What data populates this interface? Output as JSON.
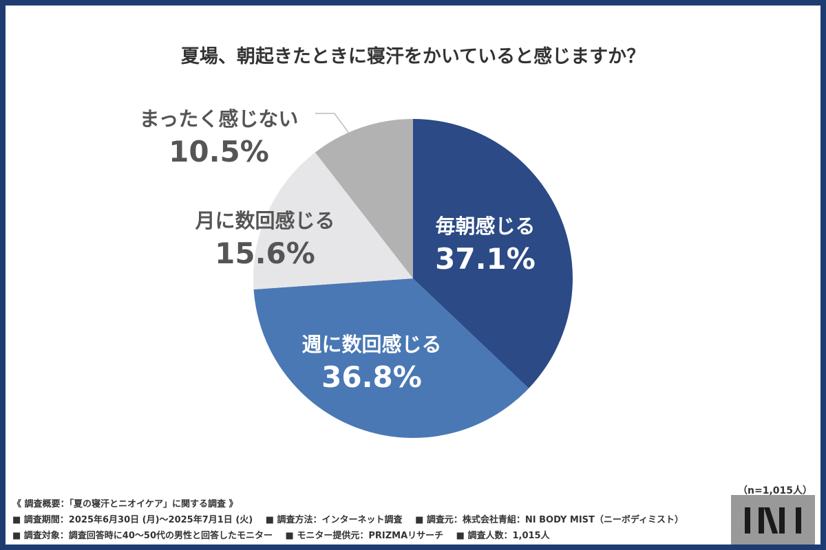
{
  "title": "夏場、朝起きたときに寝汗をかいていると感じますか？",
  "chart_data": {
    "type": "pie",
    "title": "夏場、朝起きたときに寝汗をかいていると感じますか？",
    "slices": [
      {
        "label": "毎朝感じる",
        "value": 37.1,
        "display": "37.1%",
        "color": "#2b4a86"
      },
      {
        "label": "週に数回感じる",
        "value": 36.8,
        "display": "36.8%",
        "color": "#4a78b4"
      },
      {
        "label": "月に数回感じる",
        "value": 15.6,
        "display": "15.6%",
        "color": "#e6e6e8"
      },
      {
        "label": "まったく感じない",
        "value": 10.5,
        "display": "10.5%",
        "color": "#b2b2b2"
      }
    ],
    "start": "12 o'clock",
    "direction": "clockwise"
  },
  "sample_note": "（n=1,015人）",
  "survey": {
    "heading": "《 調査概要：「夏の寝汗とニオイケア」に関する調査 》",
    "row1": [
      "■ 調査期間：2025年6月30日 (月)〜2025年7月1日 (火)",
      "■ 調査方法：インターネット調査",
      "■ 調査元：株式会社青組：NI BODY MIST（ニーボディミスト）"
    ],
    "row2": [
      "■ 調査対象：調査回答時に40〜50代の男性と回答したモニター",
      "■ モニター提供元：PRIZMAリサーチ",
      "■ 調査人数：1,015人"
    ]
  }
}
